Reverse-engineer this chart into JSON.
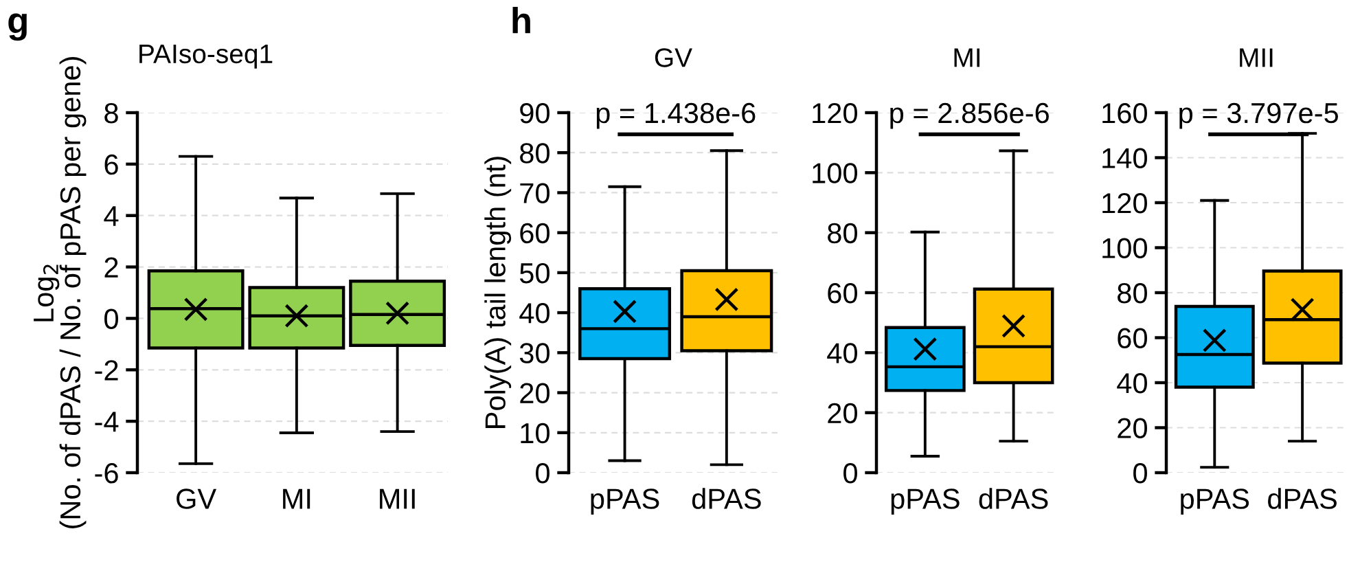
{
  "chart_data": [
    {
      "type": "box",
      "title": "PAIso-seq1",
      "ylabel": "Log$_{2}$\n(No. of dPAS / No. of pPAS per gene)",
      "categories": [
        "GV",
        "MI",
        "MII"
      ],
      "colors": [
        "#92d050",
        "#92d050",
        "#92d050"
      ],
      "ylim": [
        -6,
        8
      ],
      "yticks": [
        -6,
        -4,
        -2,
        0,
        2,
        4,
        6,
        8
      ],
      "grid": "y",
      "marker": "cross",
      "annotations": [
        "g"
      ],
      "boxes": [
        {
          "low": -5.65,
          "q1": -1.15,
          "median": 0.38,
          "q3": 1.85,
          "high": 6.3,
          "mean": 0.35
        },
        {
          "low": -4.45,
          "q1": -1.15,
          "median": 0.1,
          "q3": 1.2,
          "high": 4.68,
          "mean": 0.1
        },
        {
          "low": -4.4,
          "q1": -1.05,
          "median": 0.15,
          "q3": 1.45,
          "high": 4.85,
          "mean": 0.2
        }
      ]
    },
    {
      "type": "box",
      "title": "GV",
      "ylabel": "Poly(A) tail length (nt)",
      "categories": [
        "pPAS",
        "dPAS"
      ],
      "colors": [
        "#00b0f0",
        "#ffc000"
      ],
      "ylim": [
        0,
        90
      ],
      "yticks": [
        0,
        10,
        20,
        30,
        40,
        50,
        60,
        70,
        80,
        90
      ],
      "grid": "y",
      "marker": "cross",
      "annotations": [
        "h",
        "p = 1.438e-6"
      ],
      "boxes": [
        {
          "low": 3,
          "q1": 28.5,
          "median": 36,
          "q3": 46,
          "high": 71.5,
          "mean": 40.3
        },
        {
          "low": 2,
          "q1": 30.5,
          "median": 39,
          "q3": 50.5,
          "high": 80.5,
          "mean": 43.3
        }
      ]
    },
    {
      "type": "box",
      "title": "MI",
      "categories": [
        "pPAS",
        "dPAS"
      ],
      "colors": [
        "#00b0f0",
        "#ffc000"
      ],
      "ylim": [
        0,
        120
      ],
      "yticks": [
        0,
        20,
        40,
        60,
        80,
        100,
        120
      ],
      "grid": "y",
      "marker": "cross",
      "annotations": [
        "p = 2.856e-6"
      ],
      "boxes": [
        {
          "low": 5.5,
          "q1": 27.4,
          "median": 35.3,
          "q3": 48.4,
          "high": 80.2,
          "mean": 41.2
        },
        {
          "low": 10.5,
          "q1": 30,
          "median": 42,
          "q3": 61.2,
          "high": 107.3,
          "mean": 48.9
        }
      ]
    },
    {
      "type": "box",
      "title": "MII",
      "categories": [
        "pPAS",
        "dPAS"
      ],
      "colors": [
        "#00b0f0",
        "#ffc000"
      ],
      "ylim": [
        0,
        160
      ],
      "yticks": [
        0,
        20,
        40,
        60,
        80,
        100,
        120,
        140,
        160
      ],
      "grid": "y",
      "marker": "cross",
      "annotations": [
        "p = 3.797e-5"
      ],
      "boxes": [
        {
          "low": 2.4,
          "q1": 38,
          "median": 52.5,
          "q3": 73.9,
          "high": 121,
          "mean": 58.8
        },
        {
          "low": 14,
          "q1": 48.7,
          "median": 68,
          "q3": 89.6,
          "high": 150.8,
          "mean": 72.5
        }
      ]
    }
  ]
}
